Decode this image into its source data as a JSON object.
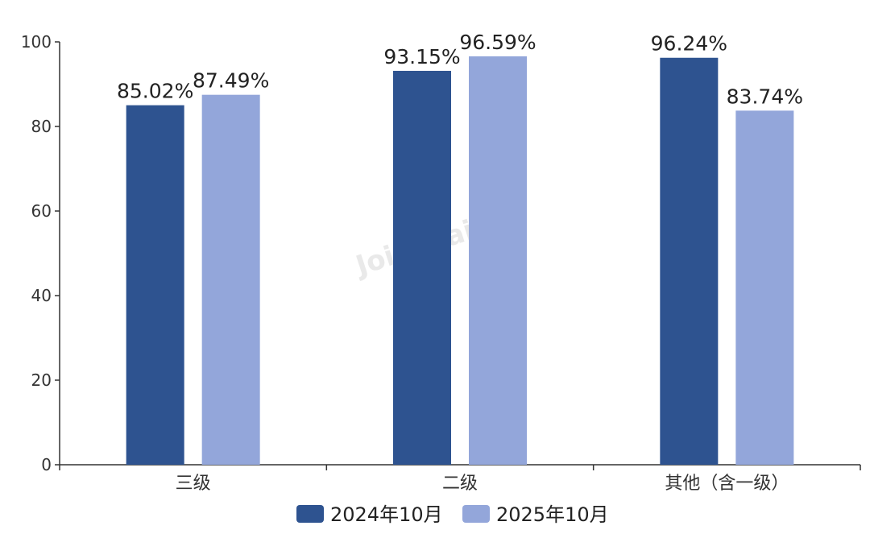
{
  "watermark": "Joinchain",
  "chart_data": {
    "type": "bar",
    "categories": [
      "三级",
      "二级",
      "其他（含一级）"
    ],
    "series": [
      {
        "name": "2024年10月",
        "color": "#2e5390",
        "values": [
          85.02,
          93.15,
          96.24
        ],
        "labels": [
          "85.02%",
          "93.15%",
          "96.24%"
        ]
      },
      {
        "name": "2025年10月",
        "color": "#93a6da",
        "values": [
          87.49,
          96.59,
          83.74
        ],
        "labels": [
          "87.49%",
          "96.59%",
          "83.74%"
        ]
      }
    ],
    "ylim": [
      0,
      100
    ],
    "yticks": [
      0,
      20,
      40,
      60,
      80,
      100
    ],
    "ytick_labels": [
      "0",
      "20",
      "40",
      "60",
      "80",
      "100"
    ],
    "grid": false,
    "legend_position": "bottom-center"
  }
}
